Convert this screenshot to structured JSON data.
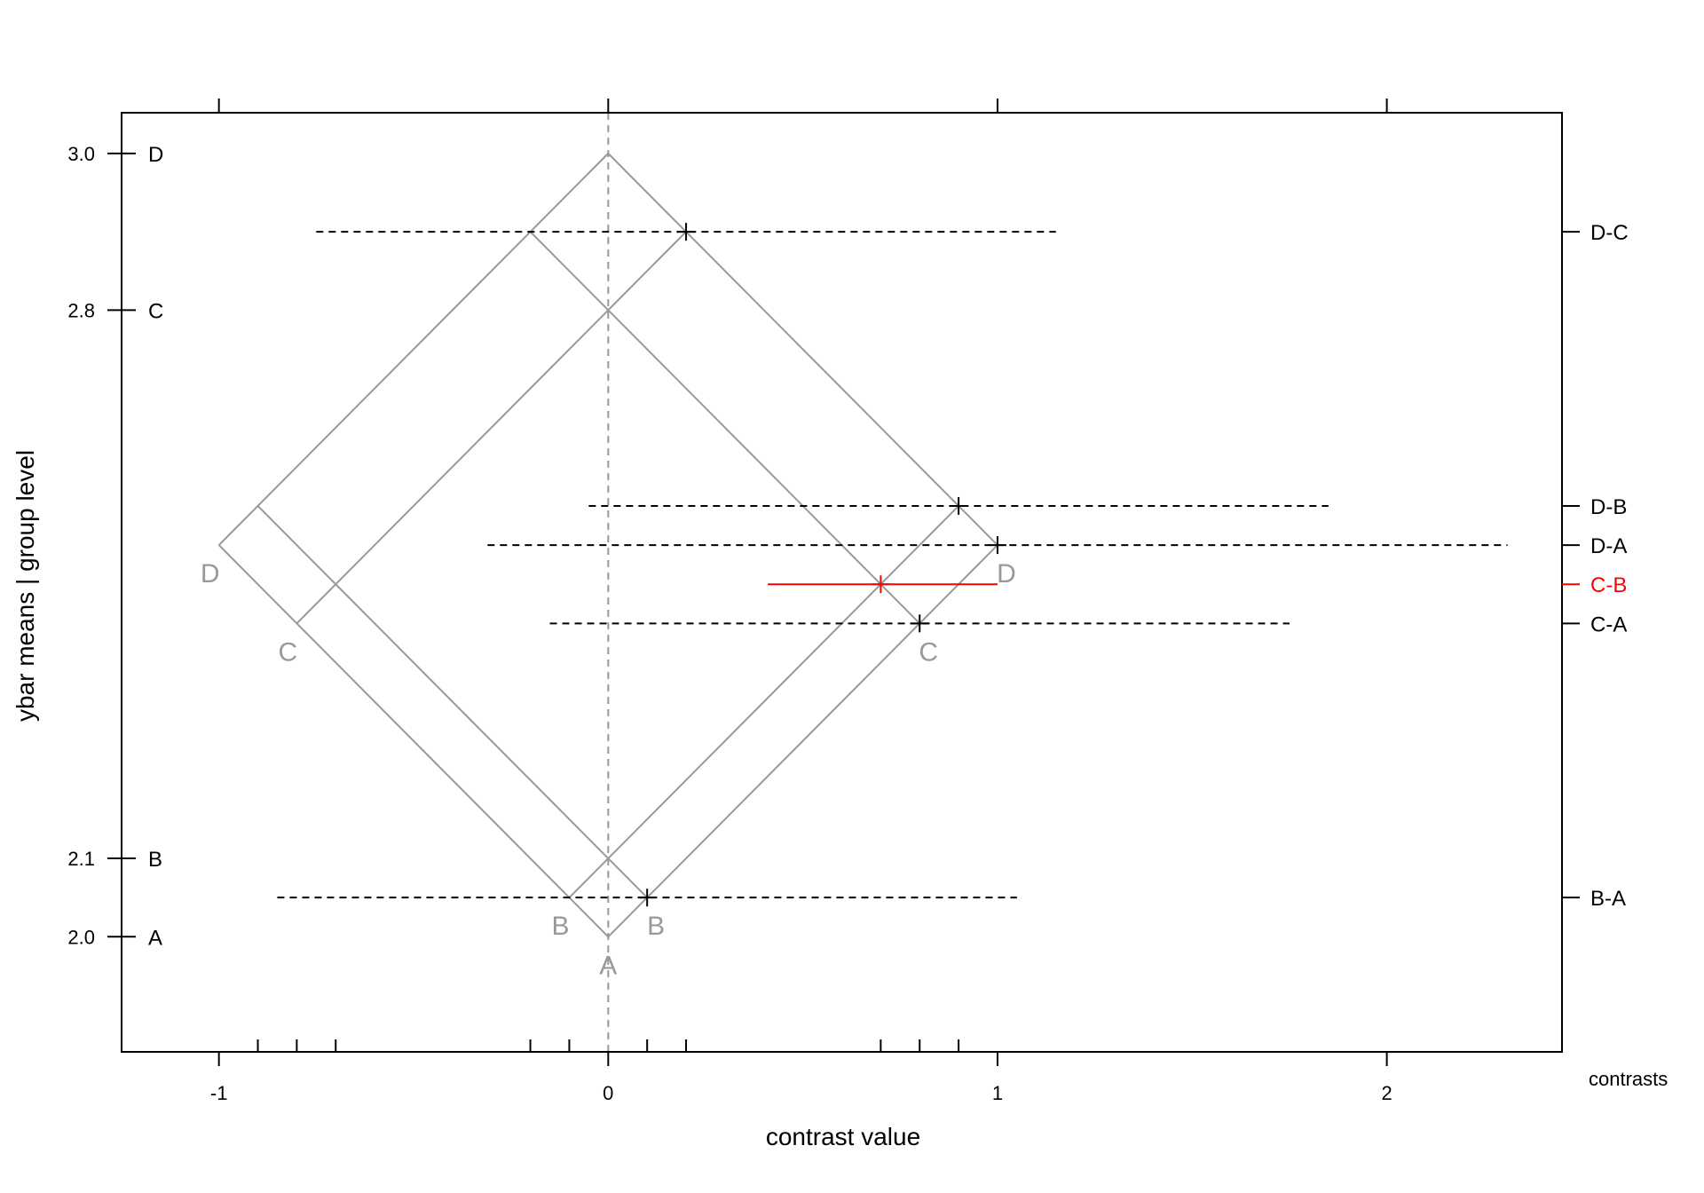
{
  "chart_data": {
    "type": "mmc-plot",
    "xlabel": "contrast value",
    "ylabel": "ybar means  |  group level",
    "right_axis_title": "contrasts",
    "xlim": [
      -1.25,
      2.45
    ],
    "ylim": [
      1.853,
      3.052
    ],
    "x_ticks": [
      -1,
      0,
      1,
      2
    ],
    "x_tick_labels": [
      "-1",
      "0",
      "1",
      "2"
    ],
    "zero_line_x": 0,
    "group_means": [
      {
        "label": "A",
        "mean": 2.0,
        "tick_label": "2.0"
      },
      {
        "label": "B",
        "mean": 2.1,
        "tick_label": "2.1"
      },
      {
        "label": "C",
        "mean": 2.8,
        "tick_label": "2.8"
      },
      {
        "label": "D",
        "mean": 3.0,
        "tick_label": "3.0"
      }
    ],
    "contrasts": [
      {
        "label": "D-C",
        "estimate": 0.2,
        "lower": -0.75,
        "upper": 1.15,
        "highlight": false
      },
      {
        "label": "D-B",
        "estimate": 0.9,
        "lower": -0.05,
        "upper": 1.85,
        "highlight": false
      },
      {
        "label": "D-A",
        "estimate": 1.0,
        "lower": -0.31,
        "upper": 2.31,
        "highlight": false
      },
      {
        "label": "C-B",
        "estimate": 0.7,
        "lower": 0.41,
        "upper": 1.0,
        "highlight": true
      },
      {
        "label": "C-A",
        "estimate": 0.8,
        "lower": -0.15,
        "upper": 1.75,
        "highlight": false
      },
      {
        "label": "B-A",
        "estimate": 0.1,
        "lower": -0.85,
        "upper": 1.05,
        "highlight": false
      }
    ],
    "colors": {
      "axis": "#000000",
      "grid": "#999999",
      "ci": "#000000",
      "highlight": "#ff0000",
      "iso_label": "#999999"
    }
  }
}
